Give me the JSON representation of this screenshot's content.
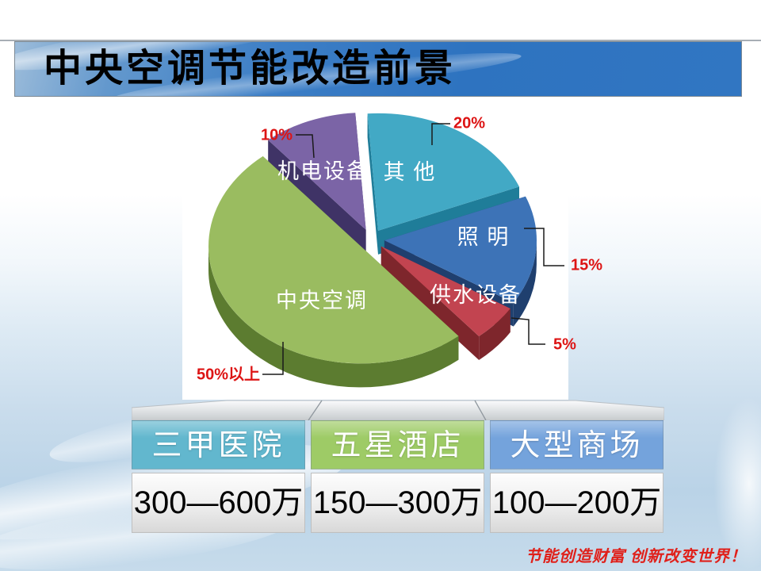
{
  "slide": {
    "title": "中央空调节能改造前景",
    "footer": "节能创造财富 创新改变世界！"
  },
  "chart_data": {
    "type": "pie",
    "unit": "percent",
    "style": "3d-exploded",
    "legend_position": "labels-on-slices",
    "callout_color": "#dd1414",
    "slices": [
      {
        "id": "other",
        "label": "其 他",
        "value": 20,
        "pct_label": "20%",
        "color": "#42a9c5",
        "side": "#1f7d99"
      },
      {
        "id": "lighting",
        "label": "照 明",
        "value": 15,
        "pct_label": "15%",
        "color": "#3d73b7",
        "side": "#1f3f6e"
      },
      {
        "id": "water-supply",
        "label": "供水设备",
        "value": 5,
        "pct_label": "5%",
        "color": "#c24450",
        "side": "#7e262c"
      },
      {
        "id": "central-ac",
        "label": "中央空调",
        "value": 50,
        "pct_label": "50%以上",
        "color": "#9abc60",
        "side": "#5c7c30"
      },
      {
        "id": "mech-elec",
        "label": "机电设备",
        "value": 10,
        "pct_label": "10%",
        "color": "#7b64a6",
        "side": "#3f3366"
      }
    ]
  },
  "table": {
    "columns": [
      {
        "id": "hospital",
        "header": "三甲医院",
        "value": "300—600万",
        "color": "#62b7ce"
      },
      {
        "id": "hotel",
        "header": "五星酒店",
        "value": "150—300万",
        "color": "#9ecb66"
      },
      {
        "id": "mall",
        "header": "大型商场",
        "value": "100—200万",
        "color": "#74a3dc"
      }
    ]
  }
}
